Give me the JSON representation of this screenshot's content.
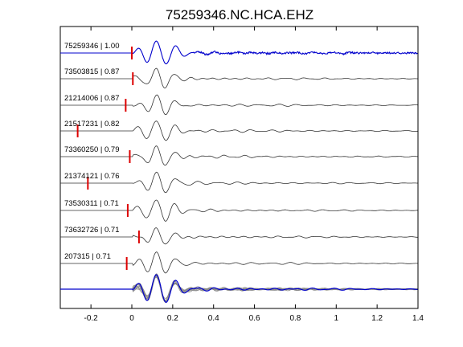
{
  "chart_data": {
    "type": "line",
    "title": "75259346.NC.HCA.EHZ",
    "xlabel": "",
    "ylabel": "",
    "xlim": [
      -0.35,
      1.4
    ],
    "xticks": [
      {
        "value": -0.2,
        "label": "-0.2"
      },
      {
        "value": 0,
        "label": "0"
      },
      {
        "value": 0.2,
        "label": "0.2"
      },
      {
        "value": 0.4,
        "label": "0.4"
      },
      {
        "value": 0.6,
        "label": "0.6"
      },
      {
        "value": 0.8,
        "label": "0.8"
      },
      {
        "value": 1.0,
        "label": "1"
      },
      {
        "value": 1.2,
        "label": "1.2"
      },
      {
        "value": 1.4,
        "label": "1.4"
      }
    ],
    "grid": false,
    "legend": "none",
    "colors": {
      "reference": "#0000cc",
      "trace": "#333333",
      "pick": "#dd0000",
      "overlay": "#888888"
    },
    "series": [
      {
        "label": "75259346 | 1.00",
        "id": "75259346",
        "cc": 1.0,
        "pick_time": 0.0,
        "reference": true
      },
      {
        "label": "73503815 | 0.87",
        "id": "73503815",
        "cc": 0.87,
        "pick_time": 0.005,
        "reference": false
      },
      {
        "label": "21214006 | 0.87",
        "id": "21214006",
        "cc": 0.87,
        "pick_time": -0.03,
        "reference": false
      },
      {
        "label": "21517231 | 0.82",
        "id": "21517231",
        "cc": 0.82,
        "pick_time": -0.265,
        "reference": false
      },
      {
        "label": "73360250 | 0.79",
        "id": "73360250",
        "cc": 0.79,
        "pick_time": -0.01,
        "reference": false
      },
      {
        "label": "21374121 | 0.76",
        "id": "21374121",
        "cc": 0.76,
        "pick_time": -0.215,
        "reference": false
      },
      {
        "label": "73530311 | 0.71",
        "id": "73530311",
        "cc": 0.71,
        "pick_time": -0.02,
        "reference": false
      },
      {
        "label": "73632726 | 0.71",
        "id": "73632726",
        "cc": 0.71,
        "pick_time": 0.035,
        "reference": false
      },
      {
        "label": "207315 | 0.71",
        "id": "207315",
        "cc": 0.71,
        "pick_time": -0.025,
        "reference": false
      }
    ],
    "stack_panel": {
      "description_hidden": true
    }
  }
}
